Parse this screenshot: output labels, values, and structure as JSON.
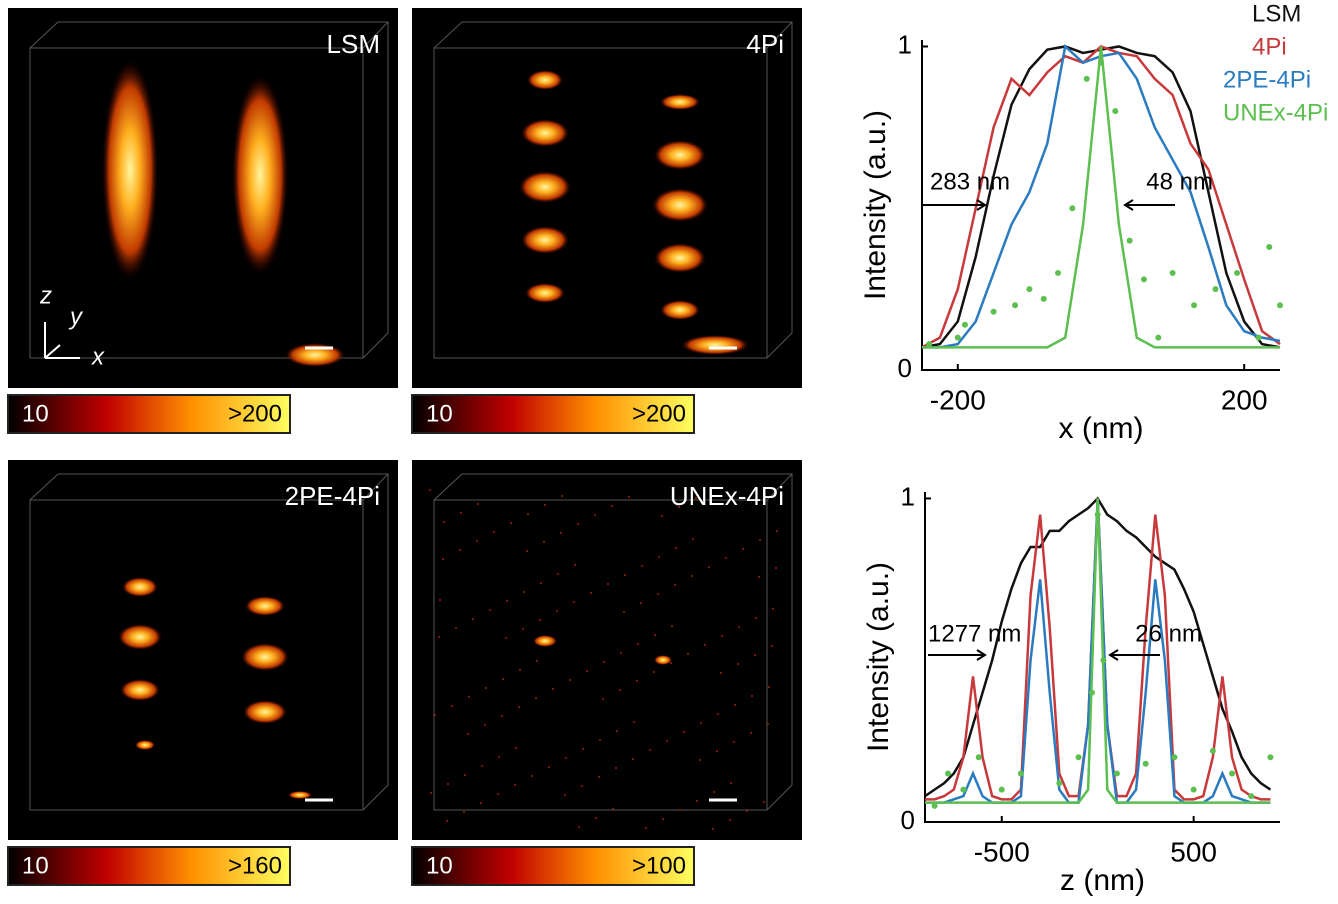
{
  "panels": [
    {
      "label": "LSM",
      "cb_min": "10",
      "cb_max": ">200",
      "axes": [
        "z",
        "y",
        "x"
      ]
    },
    {
      "label": "4Pi",
      "cb_min": "10",
      "cb_max": ">200"
    },
    {
      "label": "2PE-4Pi",
      "cb_min": "10",
      "cb_max": ">160"
    },
    {
      "label": "UNEx-4Pi",
      "cb_min": "10",
      "cb_max": ">100"
    }
  ],
  "chart_data": [
    {
      "type": "line",
      "xlabel": "x (nm)",
      "ylabel": "Intensity (a.u.)",
      "xlim": [
        -250,
        250
      ],
      "ylim": [
        0,
        1.02
      ],
      "xticks": [
        -200,
        200
      ],
      "yticks": [
        0,
        1
      ],
      "legend": "top-right",
      "annotations": [
        "283 nm",
        "48 nm"
      ],
      "x": [
        -250,
        -225,
        -200,
        -175,
        -150,
        -125,
        -100,
        -75,
        -50,
        -25,
        0,
        25,
        50,
        75,
        100,
        125,
        150,
        175,
        200,
        225,
        250
      ],
      "series": [
        {
          "name": "LSM",
          "color": "#111111",
          "values": [
            0.07,
            0.08,
            0.15,
            0.35,
            0.6,
            0.82,
            0.93,
            0.99,
            1.0,
            0.98,
            0.99,
            1.0,
            0.98,
            0.97,
            0.92,
            0.8,
            0.55,
            0.3,
            0.15,
            0.08,
            0.07
          ]
        },
        {
          "name": "4Pi",
          "color": "#c8393b",
          "values": [
            0.07,
            0.1,
            0.25,
            0.5,
            0.75,
            0.9,
            0.85,
            0.92,
            0.97,
            0.95,
            1.0,
            0.98,
            0.97,
            0.9,
            0.85,
            0.7,
            0.62,
            0.45,
            0.28,
            0.12,
            0.08
          ]
        },
        {
          "name": "2PE-4Pi",
          "color": "#2a7bc0",
          "values": [
            0.07,
            0.07,
            0.08,
            0.15,
            0.3,
            0.45,
            0.55,
            0.7,
            1.0,
            0.95,
            0.97,
            0.98,
            0.9,
            0.75,
            0.65,
            0.55,
            0.38,
            0.2,
            0.12,
            0.1,
            0.09
          ]
        },
        {
          "name": "UNEx-4Pi",
          "color": "#5cbf4f",
          "values": [
            0.07,
            0.07,
            0.07,
            0.07,
            0.07,
            0.07,
            0.07,
            0.07,
            0.1,
            0.45,
            1.0,
            0.45,
            0.1,
            0.07,
            0.07,
            0.07,
            0.07,
            0.07,
            0.07,
            0.07,
            0.07
          ]
        },
        {
          "type": "scatter",
          "color": "#5cbf4f",
          "x": [
            -240,
            -200,
            -190,
            -150,
            -120,
            -100,
            -80,
            -60,
            -40,
            -20,
            0,
            20,
            40,
            60,
            80,
            100,
            130,
            160,
            190,
            220,
            235,
            250
          ],
          "values": [
            0.08,
            0.1,
            0.14,
            0.18,
            0.2,
            0.25,
            0.22,
            0.3,
            0.5,
            0.9,
            0.95,
            0.8,
            0.4,
            0.28,
            0.1,
            0.3,
            0.2,
            0.25,
            0.3,
            0.1,
            0.38,
            0.2
          ]
        }
      ]
    },
    {
      "type": "line",
      "xlabel": "z (nm)",
      "ylabel": "Intensity (a.u.)",
      "xlim": [
        -900,
        950
      ],
      "ylim": [
        0,
        1.02
      ],
      "xticks": [
        -500,
        500
      ],
      "yticks": [
        0,
        1
      ],
      "annotations": [
        "1277 nm",
        "26 nm"
      ],
      "x": [
        -900,
        -850,
        -800,
        -750,
        -700,
        -650,
        -600,
        -550,
        -500,
        -450,
        -400,
        -350,
        -300,
        -250,
        -200,
        -150,
        -100,
        -50,
        0,
        50,
        100,
        150,
        200,
        250,
        300,
        350,
        400,
        450,
        500,
        550,
        600,
        650,
        700,
        750,
        800,
        850,
        900
      ],
      "series": [
        {
          "color": "#111111",
          "values": [
            0.08,
            0.1,
            0.12,
            0.15,
            0.2,
            0.3,
            0.4,
            0.5,
            0.62,
            0.72,
            0.8,
            0.85,
            0.85,
            0.9,
            0.9,
            0.93,
            0.95,
            0.97,
            1.0,
            0.95,
            0.93,
            0.9,
            0.88,
            0.85,
            0.82,
            0.8,
            0.78,
            0.72,
            0.65,
            0.55,
            0.45,
            0.35,
            0.28,
            0.2,
            0.15,
            0.12,
            0.1
          ]
        },
        {
          "color": "#c8393b",
          "values": [
            0.07,
            0.07,
            0.08,
            0.1,
            0.2,
            0.45,
            0.2,
            0.08,
            0.07,
            0.07,
            0.1,
            0.7,
            0.95,
            0.6,
            0.15,
            0.08,
            0.08,
            0.3,
            1.0,
            0.3,
            0.08,
            0.08,
            0.15,
            0.6,
            0.95,
            0.7,
            0.1,
            0.07,
            0.07,
            0.08,
            0.2,
            0.45,
            0.2,
            0.1,
            0.08,
            0.07,
            0.07
          ]
        },
        {
          "color": "#2a7bc0",
          "values": [
            0.06,
            0.06,
            0.06,
            0.07,
            0.08,
            0.15,
            0.08,
            0.06,
            0.06,
            0.06,
            0.08,
            0.5,
            0.75,
            0.4,
            0.1,
            0.06,
            0.06,
            0.3,
            1.0,
            0.3,
            0.06,
            0.06,
            0.1,
            0.4,
            0.75,
            0.5,
            0.08,
            0.06,
            0.06,
            0.06,
            0.08,
            0.15,
            0.08,
            0.07,
            0.06,
            0.06,
            0.06
          ]
        },
        {
          "color": "#5cbf4f",
          "values": [
            0.06,
            0.06,
            0.06,
            0.06,
            0.06,
            0.06,
            0.06,
            0.06,
            0.06,
            0.06,
            0.06,
            0.06,
            0.06,
            0.06,
            0.06,
            0.06,
            0.06,
            0.1,
            1.0,
            0.1,
            0.06,
            0.06,
            0.06,
            0.06,
            0.06,
            0.06,
            0.06,
            0.06,
            0.06,
            0.06,
            0.06,
            0.06,
            0.06,
            0.06,
            0.06,
            0.06,
            0.06
          ]
        },
        {
          "type": "scatter",
          "color": "#5cbf4f",
          "x": [
            -850,
            -780,
            -700,
            -620,
            -500,
            -400,
            -200,
            -100,
            -30,
            0,
            30,
            100,
            250,
            400,
            500,
            600,
            700,
            800,
            900
          ],
          "values": [
            0.05,
            0.15,
            0.1,
            0.2,
            0.1,
            0.15,
            0.12,
            0.2,
            0.4,
            0.95,
            0.5,
            0.15,
            0.18,
            0.2,
            0.1,
            0.22,
            0.15,
            0.08,
            0.2
          ]
        }
      ]
    }
  ]
}
